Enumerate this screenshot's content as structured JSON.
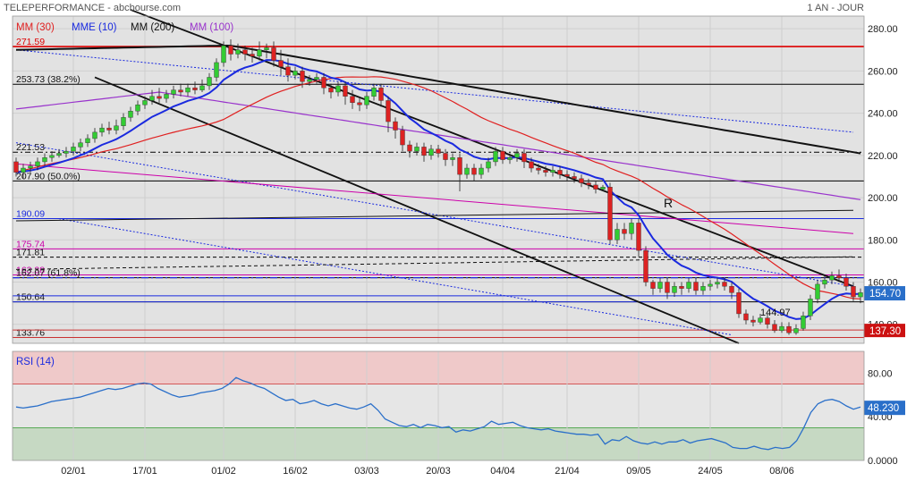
{
  "header": {
    "title": "TELEPERFORMANCE - abcbourse.com",
    "period": "1 AN - JOUR"
  },
  "legend": {
    "ma30": "MM (30)",
    "mme10": "MME (10)",
    "ma200": "MM (200)",
    "ma100": "MM (100)"
  },
  "colors": {
    "up": "#33cc33",
    "down": "#dd2222",
    "ma30": "#e02020",
    "mme10": "#1a2adf",
    "ma200": "#111111",
    "ma100": "#9933cc",
    "rsi": "#2a6fc9",
    "last_price_box": "#2a6fc9",
    "support_box": "#cc1111"
  },
  "chart_data": [
    {
      "type": "candlestick",
      "x_ticks": [
        "02/01",
        "17/01",
        "01/02",
        "16/02",
        "03/03",
        "20/03",
        "04/04",
        "21/04",
        "09/05",
        "24/05",
        "08/06"
      ],
      "y_ticks": [
        "140.00",
        "160.00",
        "180.00",
        "200.00",
        "220.00",
        "240.00",
        "260.00",
        "280.00"
      ],
      "ylim": [
        131,
        286
      ],
      "last_price": "154.70",
      "support_price": "137.30",
      "annotation_R": "R",
      "annotation_low": "144.97",
      "levels": [
        {
          "value": 271.59,
          "label": "271.59",
          "color": "#dd0000"
        },
        {
          "value": 253.73,
          "label": "253.73  (38.2%)",
          "color": "#000000"
        },
        {
          "value": 221.53,
          "label": "221.53",
          "color": "#000000"
        },
        {
          "value": 207.9,
          "label": "207.90  (50.0%)",
          "color": "#000000"
        },
        {
          "value": 190.09,
          "label": "190.09",
          "color": "#1a2adf"
        },
        {
          "value": 175.74,
          "label": "175.74",
          "color": "#cc00aa"
        },
        {
          "value": 171.81,
          "label": "171.81",
          "color": "#000000"
        },
        {
          "value": 163.38,
          "label": "163.38",
          "color": "#cc00aa"
        },
        {
          "value": 162.07,
          "label": "162.07  (61.8%)",
          "color": "#000000"
        },
        {
          "value": 150.64,
          "label": "150.64",
          "color": "#000000"
        },
        {
          "value": 133.76,
          "label": "133.76",
          "color": "#000000"
        }
      ],
      "candles": [
        [
          217,
          212,
          219,
          210
        ],
        [
          212,
          214,
          216,
          209
        ],
        [
          214,
          215,
          217,
          212
        ],
        [
          215,
          217,
          219,
          213
        ],
        [
          217,
          219,
          221,
          215
        ],
        [
          219,
          220,
          222,
          217
        ],
        [
          220,
          221,
          223,
          219
        ],
        [
          221,
          222,
          224,
          219
        ],
        [
          222,
          224,
          226,
          220
        ],
        [
          224,
          226,
          228,
          222
        ],
        [
          226,
          228,
          230,
          224
        ],
        [
          228,
          231,
          233,
          226
        ],
        [
          231,
          233,
          235,
          229
        ],
        [
          233,
          232,
          236,
          230
        ],
        [
          232,
          234,
          237,
          230
        ],
        [
          234,
          238,
          240,
          232
        ],
        [
          238,
          241,
          243,
          236
        ],
        [
          241,
          244,
          246,
          239
        ],
        [
          244,
          246,
          248,
          242
        ],
        [
          246,
          248,
          251,
          244
        ],
        [
          248,
          247,
          252,
          245
        ],
        [
          247,
          249,
          251,
          245
        ],
        [
          249,
          251,
          253,
          247
        ],
        [
          251,
          250,
          254,
          248
        ],
        [
          250,
          252,
          254,
          248
        ],
        [
          252,
          251,
          255,
          249
        ],
        [
          251,
          253,
          256,
          250
        ],
        [
          253,
          257,
          259,
          251
        ],
        [
          257,
          264,
          266,
          255
        ],
        [
          264,
          272,
          274,
          262
        ],
        [
          272,
          268,
          275,
          265
        ],
        [
          268,
          270,
          273,
          266
        ],
        [
          270,
          268,
          272,
          265
        ],
        [
          268,
          267,
          271,
          264
        ],
        [
          267,
          270,
          274,
          265
        ],
        [
          270,
          271,
          273,
          266
        ],
        [
          271,
          265,
          274,
          262
        ],
        [
          265,
          262,
          270,
          258
        ],
        [
          262,
          258,
          266,
          255
        ],
        [
          258,
          260,
          262,
          256
        ],
        [
          260,
          255,
          262,
          252
        ],
        [
          255,
          256,
          258,
          253
        ],
        [
          256,
          257,
          259,
          254
        ],
        [
          257,
          252,
          259,
          249
        ],
        [
          252,
          250,
          254,
          247
        ],
        [
          250,
          253,
          255,
          248
        ],
        [
          253,
          248,
          255,
          244
        ],
        [
          248,
          245,
          251,
          242
        ],
        [
          245,
          244,
          247,
          241
        ],
        [
          244,
          248,
          250,
          242
        ],
        [
          248,
          252,
          254,
          246
        ],
        [
          252,
          246,
          254,
          243
        ],
        [
          246,
          236,
          248,
          231
        ],
        [
          236,
          232,
          238,
          228
        ],
        [
          232,
          225,
          234,
          222
        ],
        [
          225,
          222,
          227,
          219
        ],
        [
          222,
          224,
          226,
          220
        ],
        [
          224,
          220,
          226,
          217
        ],
        [
          220,
          223,
          225,
          218
        ],
        [
          223,
          221,
          225,
          219
        ],
        [
          221,
          218,
          223,
          215
        ],
        [
          218,
          219,
          221,
          215
        ],
        [
          219,
          211,
          221,
          203
        ],
        [
          211,
          214,
          216,
          209
        ],
        [
          214,
          211,
          216,
          208
        ],
        [
          211,
          214,
          216,
          209
        ],
        [
          214,
          217,
          219,
          212
        ],
        [
          217,
          222,
          224,
          215
        ],
        [
          222,
          218,
          224,
          216
        ],
        [
          218,
          219,
          221,
          216
        ],
        [
          219,
          221,
          223,
          217
        ],
        [
          221,
          217,
          223,
          214
        ],
        [
          217,
          214,
          219,
          212
        ],
        [
          214,
          213,
          216,
          211
        ],
        [
          213,
          212,
          215,
          210
        ],
        [
          212,
          213,
          215,
          210
        ],
        [
          213,
          211,
          215,
          209
        ],
        [
          211,
          210,
          213,
          208
        ],
        [
          210,
          209,
          212,
          207
        ],
        [
          209,
          207,
          211,
          205
        ],
        [
          207,
          206,
          209,
          204
        ],
        [
          206,
          204,
          208,
          202
        ],
        [
          204,
          205,
          206,
          203
        ],
        [
          205,
          180,
          207,
          178
        ],
        [
          180,
          185,
          188,
          178
        ],
        [
          185,
          183,
          188,
          180
        ],
        [
          183,
          188,
          190,
          180
        ],
        [
          188,
          175,
          190,
          172
        ],
        [
          175,
          160,
          177,
          158
        ],
        [
          160,
          157,
          161,
          154
        ],
        [
          157,
          160,
          162,
          155
        ],
        [
          160,
          155,
          162,
          152
        ],
        [
          155,
          158,
          160,
          153
        ],
        [
          158,
          157,
          160,
          154
        ],
        [
          157,
          160,
          162,
          155
        ],
        [
          160,
          156,
          162,
          154
        ],
        [
          156,
          158,
          160,
          154
        ],
        [
          158,
          159,
          161,
          156
        ],
        [
          159,
          160,
          162,
          157
        ],
        [
          160,
          158,
          162,
          156
        ],
        [
          158,
          155,
          160,
          152
        ],
        [
          155,
          145,
          157,
          143
        ],
        [
          145,
          142,
          147,
          140
        ],
        [
          142,
          141,
          144,
          139
        ],
        [
          141,
          143,
          145,
          140
        ],
        [
          143,
          140,
          145,
          138
        ],
        [
          140,
          137,
          142,
          136
        ],
        [
          137,
          139,
          141,
          136
        ],
        [
          139,
          136,
          141,
          135
        ],
        [
          136,
          138,
          140,
          135
        ],
        [
          138,
          144,
          146,
          137
        ],
        [
          144,
          152,
          154,
          142
        ],
        [
          152,
          159,
          161,
          150
        ],
        [
          159,
          161,
          163,
          157
        ],
        [
          161,
          163,
          165,
          159
        ],
        [
          163,
          162,
          166,
          160
        ],
        [
          162,
          158,
          164,
          156
        ],
        [
          158,
          153,
          160,
          151
        ],
        [
          153,
          155,
          157,
          150
        ]
      ]
    },
    {
      "type": "line",
      "title": "RSI (14)",
      "y_ticks": [
        "0.0000",
        "40.00",
        "80.00"
      ],
      "ylim": [
        0,
        100
      ],
      "last_value": "48.230",
      "overbought": 70,
      "oversold": 30,
      "values": [
        49,
        48,
        49,
        50,
        52,
        54,
        55,
        56,
        57,
        58,
        60,
        62,
        64,
        66,
        65,
        66,
        68,
        70,
        71,
        70,
        66,
        63,
        60,
        58,
        59,
        60,
        62,
        63,
        64,
        66,
        70,
        76,
        73,
        71,
        68,
        66,
        62,
        58,
        55,
        56,
        52,
        53,
        55,
        52,
        50,
        52,
        50,
        48,
        47,
        49,
        52,
        46,
        38,
        35,
        32,
        31,
        33,
        30,
        33,
        32,
        30,
        31,
        26,
        28,
        27,
        29,
        31,
        36,
        33,
        34,
        35,
        32,
        30,
        29,
        28,
        29,
        27,
        26,
        25,
        24,
        24,
        23,
        24,
        15,
        19,
        18,
        22,
        18,
        16,
        15,
        17,
        15,
        17,
        17,
        19,
        16,
        18,
        19,
        20,
        18,
        16,
        12,
        11,
        11,
        13,
        11,
        10,
        12,
        11,
        12,
        18,
        30,
        44,
        52,
        55,
        56,
        54,
        50,
        47,
        49
      ]
    }
  ]
}
